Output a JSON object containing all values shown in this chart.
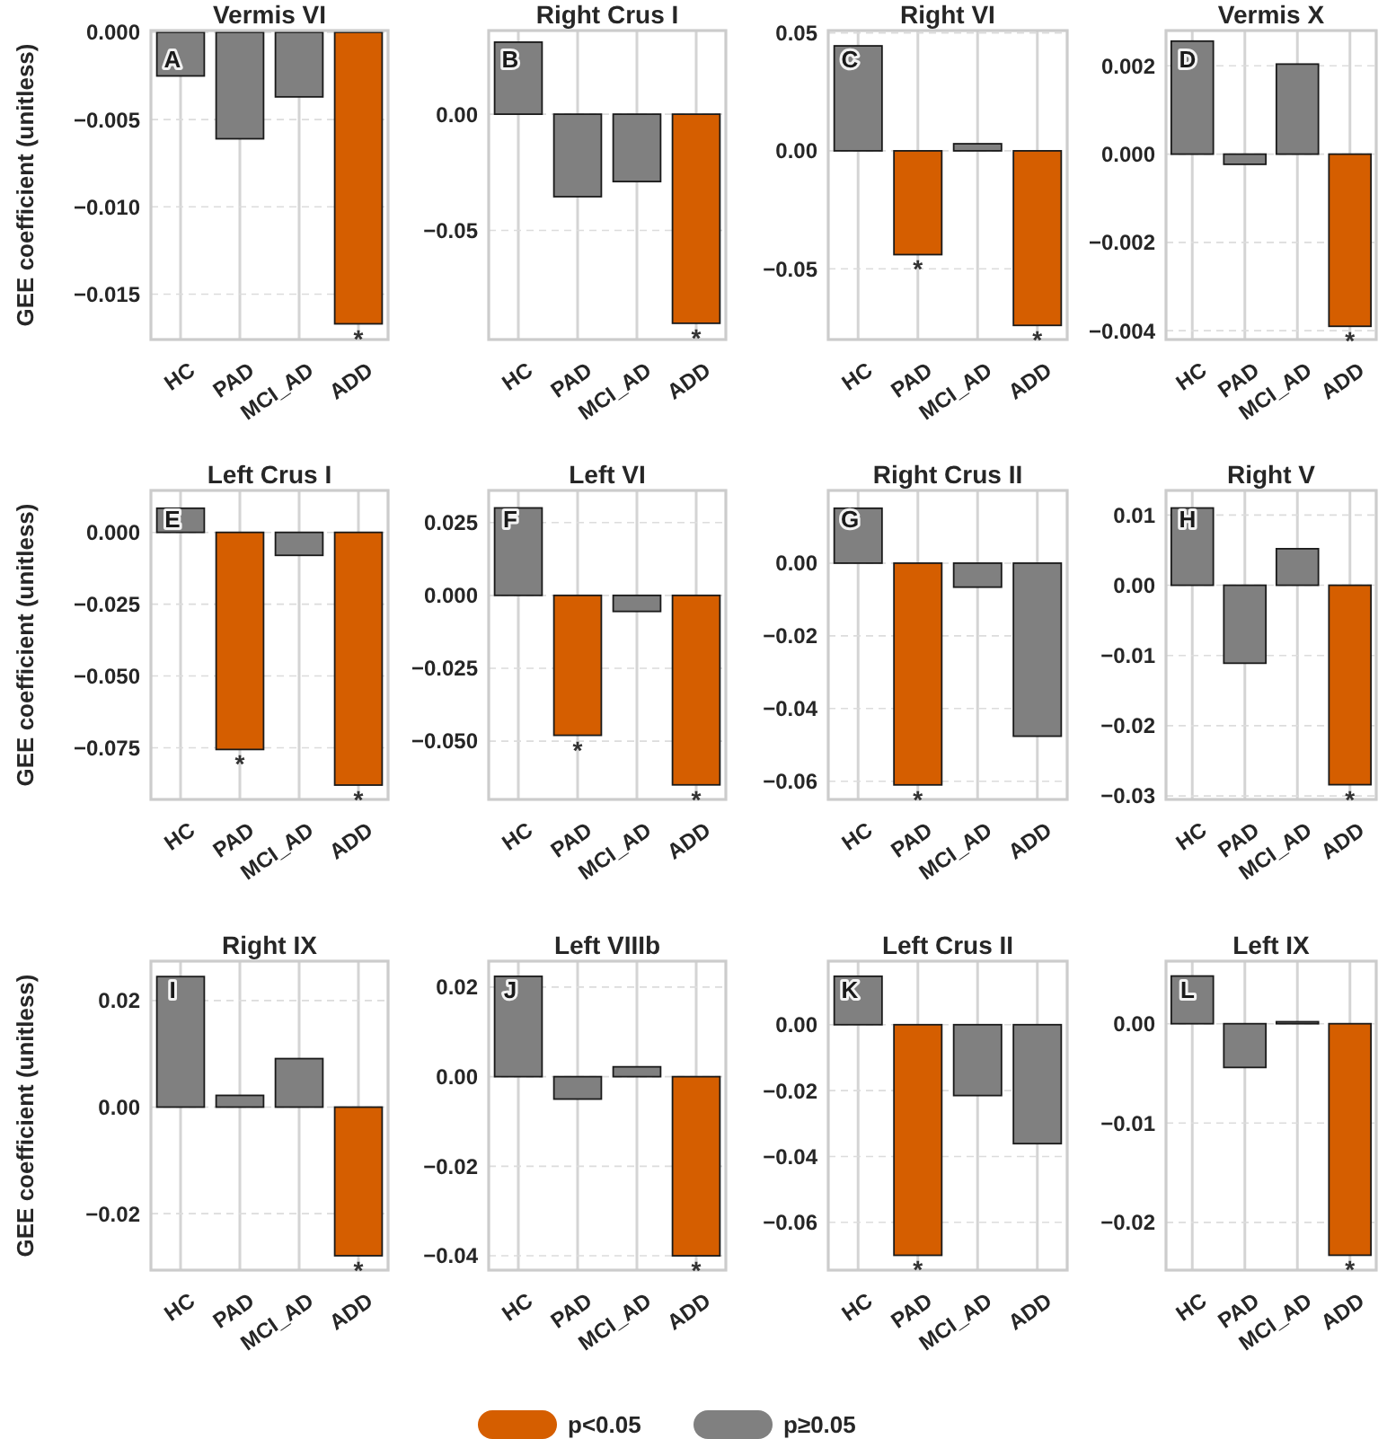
{
  "chart_data": [
    {
      "type": "bar",
      "title": "Vermis VI",
      "ylabel": "GEE coefficient (unitless)",
      "categories": [
        "HC",
        "PAD",
        "MCI_AD",
        "ADD"
      ],
      "grid": true,
      "legend": "bottom",
      "ylim": [
        -0.0176,
        0.0001
      ],
      "yticks": [
        {
          "value": 0,
          "label": "0.000"
        },
        {
          "value": -0.005,
          "label": "−0.005"
        },
        {
          "value": -0.01,
          "label": "−0.010"
        },
        {
          "value": -0.015,
          "label": "−0.015"
        }
      ],
      "series": [
        {
          "name": "p<0.05",
          "color": "#d55e00",
          "values": [
            null,
            null,
            null,
            -0.0167
          ]
        },
        {
          "name": "p≥0.05",
          "color": "#808080",
          "values": [
            -0.0025,
            -0.0061,
            -0.0037,
            null
          ]
        }
      ],
      "annotations": [
        "A",
        {
          "text": "*",
          "x": "ADD",
          "y": -0.0167
        }
      ]
    },
    {
      "type": "bar",
      "title": "Right Crus I",
      "categories": [
        "HC",
        "PAD",
        "MCI_AD",
        "ADD"
      ],
      "grid": true,
      "ylim": [
        -0.097,
        0.036
      ],
      "yticks": [
        {
          "value": 0,
          "label": "0.00"
        },
        {
          "value": -0.05,
          "label": "−0.05"
        }
      ],
      "series": [
        {
          "color": "#d55e00",
          "values": [
            null,
            null,
            null,
            -0.09
          ]
        },
        {
          "color": "#808080",
          "values": [
            0.031,
            -0.0355,
            -0.029,
            null
          ]
        }
      ],
      "annotations": [
        "B",
        {
          "text": "*",
          "x": "ADD",
          "y": -0.09
        }
      ]
    },
    {
      "type": "bar",
      "title": "Right VI",
      "categories": [
        "HC",
        "PAD",
        "MCI_AD",
        "ADD"
      ],
      "grid": true,
      "ylim": [
        -0.08,
        0.051
      ],
      "yticks": [
        {
          "value": 0.05,
          "label": "0.05"
        },
        {
          "value": 0,
          "label": "0.00"
        },
        {
          "value": -0.05,
          "label": "−0.05"
        }
      ],
      "series": [
        {
          "color": "#d55e00",
          "values": [
            null,
            -0.044,
            null,
            -0.074
          ]
        },
        {
          "color": "#808080",
          "values": [
            0.0445,
            null,
            0.003,
            null
          ]
        }
      ],
      "annotations": [
        "C",
        {
          "text": "*",
          "x": "PAD",
          "y": -0.044
        },
        {
          "text": "*",
          "x": "ADD",
          "y": -0.074
        }
      ]
    },
    {
      "type": "bar",
      "title": "Vermis X",
      "categories": [
        "HC",
        "PAD",
        "MCI_AD",
        "ADD"
      ],
      "grid": true,
      "ylim": [
        -0.0042,
        0.0028
      ],
      "yticks": [
        {
          "value": 0.002,
          "label": "0.002"
        },
        {
          "value": 0,
          "label": "0.000"
        },
        {
          "value": -0.002,
          "label": "−0.002"
        },
        {
          "value": -0.004,
          "label": "−0.004"
        }
      ],
      "series": [
        {
          "color": "#d55e00",
          "values": [
            null,
            null,
            null,
            -0.0039
          ]
        },
        {
          "color": "#808080",
          "values": [
            0.00256,
            -0.00023,
            0.00204,
            null
          ]
        }
      ],
      "annotations": [
        "D",
        {
          "text": "*",
          "x": "ADD",
          "y": -0.0039
        }
      ]
    },
    {
      "type": "bar",
      "title": "Left Crus I",
      "ylabel": "GEE coefficient (unitless)",
      "categories": [
        "HC",
        "PAD",
        "MCI_AD",
        "ADD"
      ],
      "grid": true,
      "ylim": [
        -0.093,
        0.0146
      ],
      "yticks": [
        {
          "value": 0,
          "label": "0.000"
        },
        {
          "value": -0.025,
          "label": "−0.025"
        },
        {
          "value": -0.05,
          "label": "−0.050"
        },
        {
          "value": -0.075,
          "label": "−0.075"
        }
      ],
      "series": [
        {
          "color": "#d55e00",
          "values": [
            null,
            -0.0756,
            null,
            -0.088
          ]
        },
        {
          "color": "#808080",
          "values": [
            0.0084,
            null,
            -0.008,
            null
          ]
        }
      ],
      "annotations": [
        "E",
        {
          "text": "*",
          "x": "PAD",
          "y": -0.0756
        },
        {
          "text": "*",
          "x": "ADD",
          "y": -0.088
        }
      ]
    },
    {
      "type": "bar",
      "title": "Left VI",
      "categories": [
        "HC",
        "PAD",
        "MCI_AD",
        "ADD"
      ],
      "grid": true,
      "ylim": [
        -0.07,
        0.036
      ],
      "yticks": [
        {
          "value": 0.025,
          "label": "0.025"
        },
        {
          "value": 0,
          "label": "0.000"
        },
        {
          "value": -0.025,
          "label": "−0.025"
        },
        {
          "value": -0.05,
          "label": "−0.050"
        }
      ],
      "series": [
        {
          "color": "#d55e00",
          "values": [
            null,
            -0.048,
            null,
            -0.065
          ]
        },
        {
          "color": "#808080",
          "values": [
            0.03,
            null,
            -0.0055,
            null
          ]
        }
      ],
      "annotations": [
        "F",
        {
          "text": "*",
          "x": "PAD",
          "y": -0.048
        },
        {
          "text": "*",
          "x": "ADD",
          "y": -0.065
        }
      ]
    },
    {
      "type": "bar",
      "title": "Right Crus II",
      "categories": [
        "HC",
        "PAD",
        "MCI_AD",
        "ADD"
      ],
      "grid": true,
      "ylim": [
        -0.065,
        0.02
      ],
      "yticks": [
        {
          "value": 0,
          "label": "0.00"
        },
        {
          "value": -0.02,
          "label": "−0.02"
        },
        {
          "value": -0.04,
          "label": "−0.04"
        },
        {
          "value": -0.06,
          "label": "−0.06"
        }
      ],
      "series": [
        {
          "color": "#d55e00",
          "values": [
            null,
            -0.061,
            null,
            null
          ]
        },
        {
          "color": "#808080",
          "values": [
            0.0151,
            null,
            -0.0066,
            -0.0476
          ]
        }
      ],
      "annotations": [
        "G",
        {
          "text": "*",
          "x": "PAD",
          "y": -0.061
        }
      ]
    },
    {
      "type": "bar",
      "title": "Right V",
      "categories": [
        "HC",
        "PAD",
        "MCI_AD",
        "ADD"
      ],
      "grid": true,
      "ylim": [
        -0.0305,
        0.0135
      ],
      "yticks": [
        {
          "value": 0.01,
          "label": "0.01"
        },
        {
          "value": 0,
          "label": "0.00"
        },
        {
          "value": -0.01,
          "label": "−0.01"
        },
        {
          "value": -0.02,
          "label": "−0.02"
        },
        {
          "value": -0.03,
          "label": "−0.03"
        }
      ],
      "series": [
        {
          "color": "#d55e00",
          "values": [
            null,
            null,
            null,
            -0.0284
          ]
        },
        {
          "color": "#808080",
          "values": [
            0.011,
            -0.0111,
            0.0052,
            null
          ]
        }
      ],
      "annotations": [
        "H",
        {
          "text": "*",
          "x": "ADD",
          "y": -0.0284
        }
      ]
    },
    {
      "type": "bar",
      "title": "Right IX",
      "ylabel": "GEE coefficient (unitless)",
      "categories": [
        "HC",
        "PAD",
        "MCI_AD",
        "ADD"
      ],
      "grid": true,
      "ylim": [
        -0.0306,
        0.0274
      ],
      "yticks": [
        {
          "value": 0.02,
          "label": "0.02"
        },
        {
          "value": 0,
          "label": "0.00"
        },
        {
          "value": -0.02,
          "label": "−0.02"
        }
      ],
      "series": [
        {
          "color": "#d55e00",
          "values": [
            null,
            null,
            null,
            -0.0279
          ]
        },
        {
          "color": "#808080",
          "values": [
            0.0245,
            0.0022,
            0.0091,
            null
          ]
        }
      ],
      "annotations": [
        "I",
        {
          "text": "*",
          "x": "ADD",
          "y": -0.0279
        }
      ]
    },
    {
      "type": "bar",
      "title": "Left VIIIb",
      "categories": [
        "HC",
        "PAD",
        "MCI_AD",
        "ADD"
      ],
      "grid": true,
      "ylim": [
        -0.0432,
        0.0258
      ],
      "yticks": [
        {
          "value": 0.02,
          "label": "0.02"
        },
        {
          "value": 0,
          "label": "0.00"
        },
        {
          "value": -0.02,
          "label": "−0.02"
        },
        {
          "value": -0.04,
          "label": "−0.04"
        }
      ],
      "series": [
        {
          "color": "#d55e00",
          "values": [
            null,
            null,
            null,
            -0.04
          ]
        },
        {
          "color": "#808080",
          "values": [
            0.0224,
            -0.005,
            0.0022,
            null
          ]
        }
      ],
      "annotations": [
        "J",
        {
          "text": "*",
          "x": "ADD",
          "y": -0.04
        }
      ]
    },
    {
      "type": "bar",
      "title": "Left Crus II",
      "categories": [
        "HC",
        "PAD",
        "MCI_AD",
        "ADD"
      ],
      "grid": true,
      "ylim": [
        -0.0745,
        0.0193
      ],
      "yticks": [
        {
          "value": 0,
          "label": "0.00"
        },
        {
          "value": -0.02,
          "label": "−0.02"
        },
        {
          "value": -0.04,
          "label": "−0.04"
        },
        {
          "value": -0.06,
          "label": "−0.06"
        }
      ],
      "series": [
        {
          "color": "#d55e00",
          "values": [
            null,
            -0.07,
            null,
            null
          ]
        },
        {
          "color": "#808080",
          "values": [
            0.0147,
            null,
            -0.0215,
            -0.0361
          ]
        }
      ],
      "annotations": [
        "K",
        {
          "text": "*",
          "x": "PAD",
          "y": -0.07
        }
      ]
    },
    {
      "type": "bar",
      "title": "Left IX",
      "categories": [
        "HC",
        "PAD",
        "MCI_AD",
        "ADD"
      ],
      "grid": true,
      "ylim": [
        -0.0248,
        0.0063
      ],
      "yticks": [
        {
          "value": 0,
          "label": "0.00"
        },
        {
          "value": -0.01,
          "label": "−0.01"
        },
        {
          "value": -0.02,
          "label": "−0.02"
        }
      ],
      "series": [
        {
          "color": "#d55e00",
          "values": [
            null,
            null,
            null,
            -0.0233
          ]
        },
        {
          "color": "#808080",
          "values": [
            0.0048,
            -0.0044,
            0.0002,
            null
          ]
        }
      ],
      "annotations": [
        "L",
        {
          "text": "*",
          "x": "ADD",
          "y": -0.0233
        }
      ]
    }
  ]
}
